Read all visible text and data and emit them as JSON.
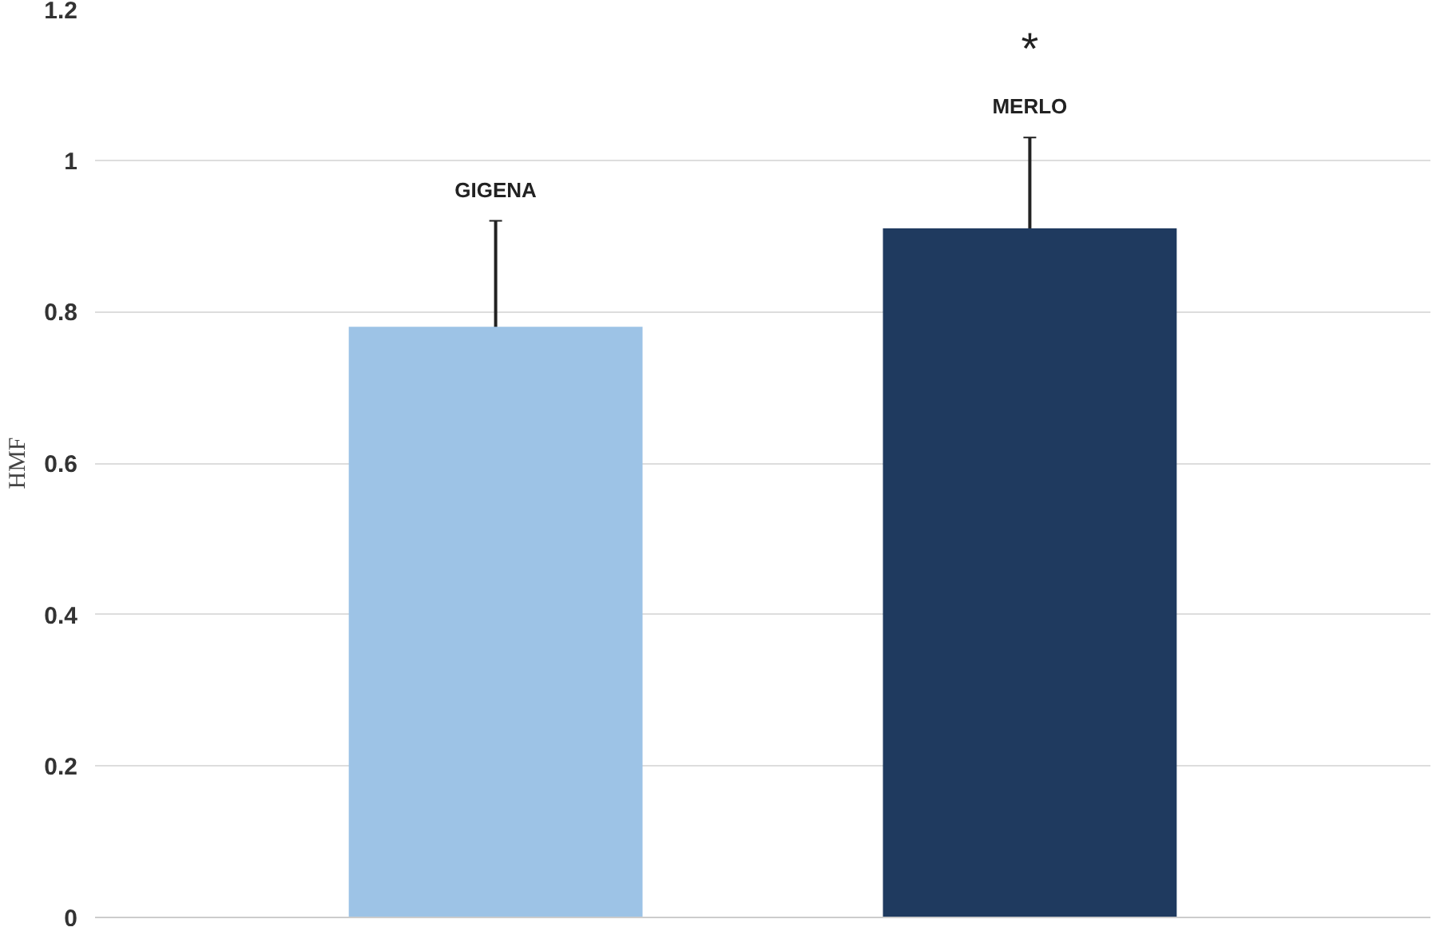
{
  "chart_data": {
    "type": "bar",
    "ylabel": "HMF",
    "categories": [
      "GIGENA",
      "MERLO"
    ],
    "values": [
      0.78,
      0.91
    ],
    "colors": [
      "#9dc3e6",
      "#1f3a5f"
    ],
    "errors": [
      0.14,
      0.12
    ],
    "ylim": [
      0,
      1.2
    ],
    "yticks": [
      0,
      0.2,
      0.4,
      0.6,
      0.8,
      1,
      1.2
    ],
    "grid": "y",
    "tick_labels": "y",
    "annotations": [
      "*"
    ]
  }
}
